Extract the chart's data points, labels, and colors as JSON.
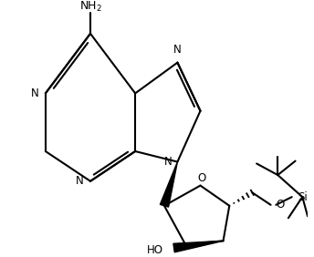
{
  "bg_color": "#ffffff",
  "line_color": "#000000",
  "line_width": 1.5,
  "font_size": 8.5,
  "figsize": [
    3.44,
    2.82
  ],
  "dpi": 100,
  "xlim": [
    0,
    344
  ],
  "ylim": [
    0,
    282
  ]
}
